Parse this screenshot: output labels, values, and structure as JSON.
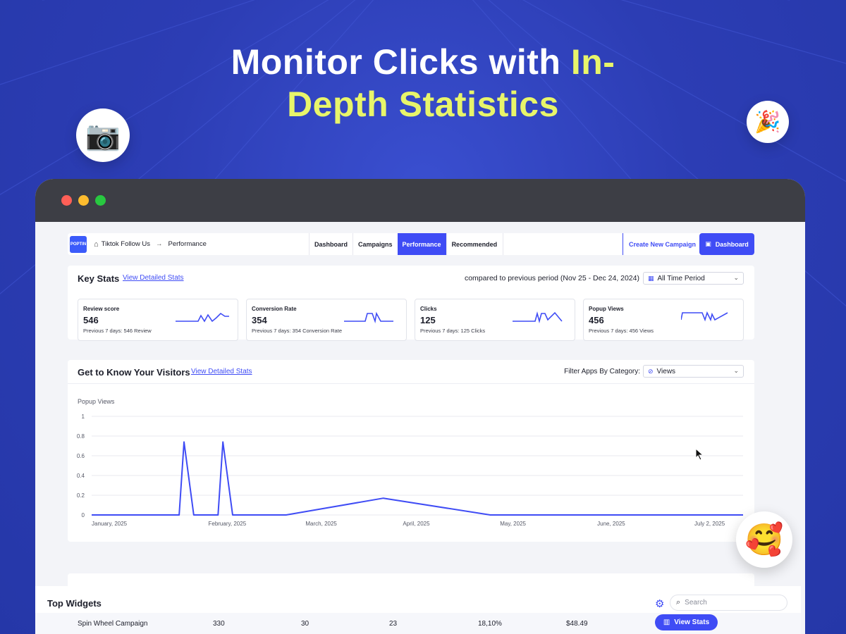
{
  "headline": {
    "line1_white": "Monitor Clicks with ",
    "line1_highlight": "In-",
    "line2_highlight": "Depth Statistics"
  },
  "decorations": {
    "left_icon": "camera-emoji",
    "right_icon": "party-popper-emoji",
    "bottom_icon": "smiling-face-with-hearts-emoji"
  },
  "colors": {
    "background": "#2b3fb8",
    "accent": "#3f4cf5",
    "highlight": "#e8f56a"
  },
  "nav": {
    "logo_text": "POPTIN",
    "breadcrumb": [
      "Tiktok Follow Us",
      "Performance"
    ],
    "tabs": [
      {
        "label": "Dashboard",
        "active": false
      },
      {
        "label": "Campaigns",
        "active": false
      },
      {
        "label": "Performance",
        "active": true
      },
      {
        "label": "Recommended",
        "active": false
      }
    ],
    "create_label": "Create New Campaign",
    "dashboard_button": "Dashboard"
  },
  "key_stats": {
    "title": "Key Stats",
    "link": "View Detailed Stats",
    "compare_text": "compared to previous period (Nov 25 - Dec 24, 2024)",
    "period_select": "All Time Period",
    "cards": [
      {
        "label": "Review score",
        "value": "546",
        "sub": "Previous 7 days: 546 Review"
      },
      {
        "label": "Conversion Rate",
        "value": "354",
        "sub": "Previous 7 days: 354 Conversion Rate"
      },
      {
        "label": "Clicks",
        "value": "125",
        "sub": "Previous 7 days: 125 Clicks"
      },
      {
        "label": "Popup Views",
        "value": "456",
        "sub": "Previous 7 days: 456 Views"
      }
    ]
  },
  "visitors": {
    "title": "Get to Know Your Visitors",
    "link": "View Detailed Stats",
    "filter_label": "Filter Apps By Category:",
    "filter_select": "Views"
  },
  "chart_data": {
    "type": "line",
    "title": "Popup Views",
    "xlabel": "",
    "ylabel": "",
    "ylim": [
      0,
      1
    ],
    "y_ticks": [
      "0",
      "0.2",
      "0.4",
      "0.6",
      "0.8",
      "1"
    ],
    "x_tick_labels": [
      "January, 2025",
      "February, 2025",
      "March, 2025",
      "April, 2025",
      "May, 2025",
      "June, 2025",
      "July 2, 2025"
    ],
    "grid": true,
    "series": [
      {
        "color": "#3f4cf5",
        "x": [
          0,
          0.9,
          0.95,
          1.05,
          1.3,
          1.35,
          1.45,
          1.5,
          2.0,
          3.0,
          4.1,
          5.0,
          6.0,
          6.7
        ],
        "values": [
          0,
          0,
          0.74,
          0,
          0,
          0.74,
          0,
          0,
          0,
          0.17,
          0,
          0,
          0,
          0
        ]
      }
    ]
  },
  "top_widgets": {
    "title": "Top Widgets",
    "search_placeholder": "Search",
    "row": {
      "name": "Spin Wheel Campaign",
      "c1": "330",
      "c2": "30",
      "c3": "23",
      "c4": "18,10%",
      "c5": "$48.49"
    },
    "view_button": "View Stats"
  }
}
